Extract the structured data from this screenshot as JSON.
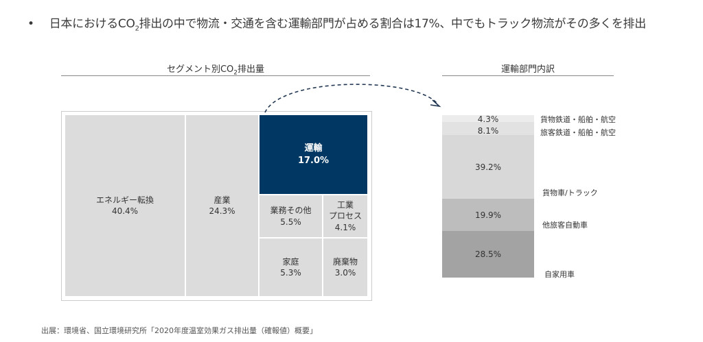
{
  "headline": {
    "bullet": "•",
    "pre": "日本におけるCO",
    "sub": "2",
    "post": "排出の中で物流・交通を含む運輸部門が占める割合は17%、中でもトラック物流がその多くを排出"
  },
  "chart_data": [
    {
      "type": "treemap",
      "title_pre": "セグメント別CO",
      "title_sub": "2",
      "title_post": "排出量",
      "items": [
        {
          "label": "エネルギー転換",
          "value": "40.4%",
          "highlight": false
        },
        {
          "label": "産業",
          "value": "24.3%",
          "highlight": false
        },
        {
          "label": "運輸",
          "value": "17.0%",
          "highlight": true
        },
        {
          "label": "業務その他",
          "value": "5.5%",
          "highlight": false
        },
        {
          "label": "工業\nプロセス",
          "value": "4.1%",
          "highlight": false
        },
        {
          "label": "家庭",
          "value": "5.3%",
          "highlight": false
        },
        {
          "label": "廃棄物",
          "value": "3.0%",
          "highlight": false
        }
      ],
      "colors": {
        "default": "#dcdcdc",
        "highlight": "#003863"
      }
    },
    {
      "type": "stacked-bar",
      "title": "運輸部門内訳",
      "segments": [
        {
          "label": "貨物鉄道・船舶・航空",
          "value": 4.3,
          "text": "4.3%",
          "color": "#ececec"
        },
        {
          "label": "旅客鉄道・船舶・航空",
          "value": 8.1,
          "text": "8.1%",
          "color": "#e2e2e2"
        },
        {
          "label": "貨物車/トラック",
          "value": 39.2,
          "text": "39.2%",
          "color": "#d8d8d8"
        },
        {
          "label": "他旅客自動車",
          "value": 19.9,
          "text": "19.9%",
          "color": "#bdbdbd"
        },
        {
          "label": "自家用車",
          "value": 28.5,
          "text": "28.5%",
          "color": "#a3a3a3"
        }
      ]
    }
  ],
  "source": "出展：環境省、国立環境研究所「2020年度温室効果ガス排出量（確報値）概要」"
}
